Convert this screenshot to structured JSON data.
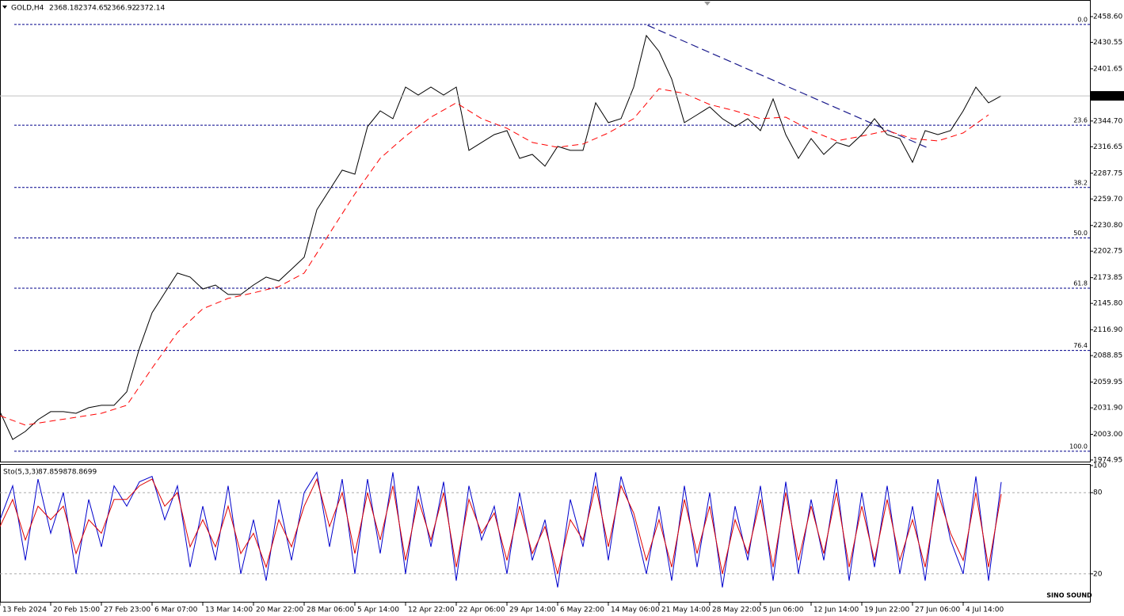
{
  "chart_data": [
    {
      "type": "line",
      "title": "GOLD,H4",
      "ohlc_header": [
        2368.18,
        2374.65,
        2366.92,
        2372.14
      ],
      "x": [
        0,
        11,
        22,
        33,
        44,
        55,
        66,
        77,
        88,
        99,
        110,
        121,
        132,
        143,
        154,
        165,
        176,
        187,
        198,
        209,
        220,
        231,
        242,
        253,
        264,
        275,
        286,
        297,
        308,
        319,
        330,
        341,
        352,
        363,
        374,
        385,
        396,
        407,
        418,
        429,
        440,
        451,
        462,
        473,
        484,
        495,
        506,
        517,
        528,
        539,
        550,
        561,
        572,
        583,
        594,
        605,
        616,
        627,
        638,
        649,
        660,
        671,
        682,
        693,
        704,
        715,
        726,
        737,
        748,
        759,
        770,
        781,
        792,
        803,
        814,
        825,
        836,
        847,
        858,
        869
      ],
      "series": [
        {
          "color": "#000000",
          "values": [
            2027.7,
            1997.4,
            2006.1,
            2019.0,
            2027.7,
            2027.7,
            2025.9,
            2032.0,
            2034.6,
            2034.6,
            2049.3,
            2096.8,
            2135.6,
            2157.2,
            2178.8,
            2174.5,
            2161.5,
            2165.8,
            2155.5,
            2155.5,
            2165.8,
            2174.5,
            2170.2,
            2183.1,
            2196.1,
            2247.9,
            2269.5,
            2291.1,
            2286.7,
            2338.6,
            2355.8,
            2347.2,
            2381.7,
            2373.1,
            2381.7,
            2373.1,
            2381.7,
            2312.7,
            2321.3,
            2329.9,
            2334.2,
            2304.0,
            2308.3,
            2295.4,
            2317.0,
            2312.7,
            2312.7,
            2364.5,
            2342.9,
            2347.2,
            2381.7,
            2437.9,
            2420.6,
            2390.4,
            2342.9,
            2351.5,
            2360.1,
            2347.2,
            2338.6,
            2347.2,
            2334.2,
            2368.8,
            2329.9,
            2304.0,
            2325.6,
            2308.3,
            2321.3,
            2317.0,
            2329.9,
            2347.2,
            2329.9,
            2325.6,
            2299.7,
            2334.2,
            2329.9,
            2334.2,
            2355.8,
            2381.7,
            2364.5,
            2372.14
          ]
        },
        {
          "color": "#ff0000",
          "dashed": true,
          "x": [
            0,
            22,
            44,
            66,
            88,
            110,
            132,
            154,
            176,
            198,
            220,
            242,
            264,
            286,
            308,
            330,
            352,
            374,
            396,
            418,
            440,
            462,
            484,
            506,
            528,
            550,
            572,
            594,
            616,
            638,
            660,
            682,
            704,
            726,
            748,
            770,
            792,
            814,
            836,
            858
          ],
          "values": [
            2023.3,
            2013.0,
            2017.3,
            2021.6,
            2025.9,
            2034.6,
            2075.2,
            2114.0,
            2139.9,
            2151.2,
            2157.2,
            2164.1,
            2178.8,
            2222.0,
            2265.2,
            2304.0,
            2328.2,
            2348.9,
            2364.5,
            2347.2,
            2336.8,
            2321.3,
            2316.1,
            2319.6,
            2331.7,
            2347.2,
            2380.0,
            2374.8,
            2362.7,
            2355.8,
            2347.2,
            2348.9,
            2334.2,
            2323.0,
            2328.2,
            2334.2,
            2325.6,
            2323.0,
            2331.7,
            2351.5
          ]
        }
      ],
      "trendline": {
        "color": "#1a1a8c",
        "x": [
          562,
          804
        ],
        "values": [
          2449.1,
          2316.1
        ]
      },
      "fib_levels": [
        {
          "value": 2450.0,
          "label": "0.0"
        },
        {
          "value": 2340.1,
          "label": "23.6"
        },
        {
          "value": 2272.2,
          "label": "38.2"
        },
        {
          "value": 2217.2,
          "label": "50.0"
        },
        {
          "value": 2162.3,
          "label": "61.8"
        },
        {
          "value": 2094.4,
          "label": "76.4"
        },
        {
          "value": 1984.5,
          "label": "100.0"
        }
      ],
      "fib_color": "#00008b",
      "xlim": [
        0,
        946
      ],
      "xticks": [
        {
          "value": 0,
          "label": "13 Feb 2024"
        },
        {
          "value": 44,
          "label": "20 Feb 15:00"
        },
        {
          "value": 88,
          "label": "27 Feb 23:00"
        },
        {
          "value": 132,
          "label": "6 Mar 07:00"
        },
        {
          "value": 176,
          "label": "13 Mar 14:00"
        },
        {
          "value": 220,
          "label": "20 Mar 22:00"
        },
        {
          "value": 264,
          "label": "28 Mar 06:00"
        },
        {
          "value": 308,
          "label": "5 Apr 14:00"
        },
        {
          "value": 352,
          "label": "12 Apr 22:00"
        },
        {
          "value": 396,
          "label": "22 Apr 06:00"
        },
        {
          "value": 440,
          "label": "29 Apr 14:00"
        },
        {
          "value": 484,
          "label": "6 May 22:00"
        },
        {
          "value": 528,
          "label": "14 May 06:00"
        },
        {
          "value": 572,
          "label": "21 May 14:00"
        },
        {
          "value": 616,
          "label": "28 May 22:00"
        },
        {
          "value": 660,
          "label": "5 Jun 06:00"
        },
        {
          "value": 704,
          "label": "12 Jun 14:00"
        },
        {
          "value": 748,
          "label": "19 Jun 22:00"
        },
        {
          "value": 792,
          "label": "27 Jun 06:00"
        },
        {
          "value": 836,
          "label": "4 Jul 14:00"
        }
      ],
      "ylim": [
        1973.2,
        2476.7
      ],
      "yticks": [
        {
          "value": 2458.6,
          "label": "2458.60"
        },
        {
          "value": 2430.55,
          "label": "2430.55"
        },
        {
          "value": 2401.65,
          "label": "2401.65"
        },
        {
          "value": 2344.7,
          "label": "2344.70"
        },
        {
          "value": 2316.65,
          "label": "2316.65"
        },
        {
          "value": 2287.75,
          "label": "2287.75"
        },
        {
          "value": 2259.7,
          "label": "2259.70"
        },
        {
          "value": 2230.8,
          "label": "2230.80"
        },
        {
          "value": 2202.75,
          "label": "2202.75"
        },
        {
          "value": 2173.85,
          "label": "2173.85"
        },
        {
          "value": 2145.8,
          "label": "2145.80"
        },
        {
          "value": 2116.9,
          "label": "2116.90"
        },
        {
          "value": 2088.85,
          "label": "2088.85"
        },
        {
          "value": 2059.95,
          "label": "2059.95"
        },
        {
          "value": 2031.9,
          "label": "2031.90"
        },
        {
          "value": 2003.0,
          "label": "2003.00"
        },
        {
          "value": 1974.95,
          "label": "1974.95"
        }
      ],
      "watermark": "SINO SOUND"
    },
    {
      "type": "line",
      "title": "Sto(5,3,3)",
      "x": [
        0,
        11,
        22,
        33,
        44,
        55,
        66,
        77,
        88,
        99,
        110,
        121,
        132,
        143,
        154,
        165,
        176,
        187,
        198,
        209,
        220,
        231,
        242,
        253,
        264,
        275,
        286,
        297,
        308,
        319,
        330,
        341,
        352,
        363,
        374,
        385,
        396,
        407,
        418,
        429,
        440,
        451,
        462,
        473,
        484,
        495,
        506,
        517,
        528,
        539,
        550,
        561,
        572,
        583,
        594,
        605,
        616,
        627,
        638,
        649,
        660,
        671,
        682,
        693,
        704,
        715,
        726,
        737,
        748,
        759,
        770,
        781,
        792,
        803,
        814,
        825,
        836,
        847,
        858,
        869
      ],
      "series": [
        {
          "color": "#0000cc",
          "values": [
            60,
            85,
            30,
            90,
            50,
            80,
            20,
            75,
            40,
            85,
            70,
            88,
            92,
            60,
            85,
            25,
            70,
            30,
            85,
            20,
            60,
            15,
            75,
            30,
            80,
            95,
            40,
            90,
            20,
            90,
            35,
            95,
            20,
            85,
            40,
            88,
            15,
            85,
            45,
            70,
            20,
            80,
            30,
            60,
            10,
            75,
            40,
            95,
            30,
            92,
            60,
            20,
            70,
            15,
            85,
            25,
            80,
            10,
            70,
            30,
            85,
            15,
            88,
            20,
            75,
            30,
            90,
            15,
            80,
            25,
            85,
            20,
            70,
            15,
            90,
            45,
            20,
            92,
            15,
            87.8598
          ]
        },
        {
          "color": "#dd0000",
          "values": [
            55,
            75,
            45,
            70,
            60,
            70,
            35,
            60,
            50,
            75,
            75,
            85,
            90,
            70,
            80,
            40,
            60,
            40,
            70,
            35,
            50,
            25,
            60,
            40,
            70,
            90,
            55,
            80,
            35,
            80,
            45,
            85,
            30,
            75,
            45,
            80,
            25,
            75,
            50,
            65,
            30,
            70,
            35,
            55,
            20,
            60,
            45,
            85,
            40,
            85,
            65,
            30,
            60,
            25,
            75,
            35,
            70,
            20,
            60,
            35,
            75,
            25,
            80,
            30,
            70,
            35,
            80,
            25,
            70,
            30,
            75,
            30,
            60,
            25,
            80,
            50,
            30,
            80,
            25,
            78.8699
          ]
        }
      ],
      "xlim": [
        0,
        946
      ],
      "ylim": [
        0,
        100
      ],
      "yticks": [
        100,
        80,
        20
      ]
    }
  ]
}
